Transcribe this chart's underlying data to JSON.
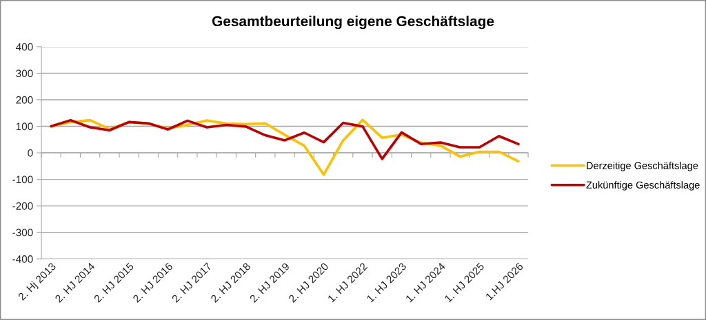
{
  "chart_data": {
    "type": "line",
    "title": "Gesamtbeurteilung eigene Geschäftslage",
    "categories": [
      "2. Hj 2013",
      null,
      "2. HJ 2014",
      null,
      "2. HJ 2015",
      null,
      "2. HJ 2016",
      null,
      "2. HJ 2017",
      null,
      "2. HJ 2018",
      null,
      "2. HJ 2019",
      null,
      "2. HJ 2020",
      null,
      "1. HJ 2022",
      null,
      "1. HJ 2023",
      null,
      "1. HJ 2024",
      null,
      "1. HJ 2025",
      null,
      "1.HJ 2026"
    ],
    "series": [
      {
        "name": "Derzeitige Geschäftslage",
        "color": "#ffc000",
        "values": [
          100,
          116,
          123,
          90,
          116,
          110,
          92,
          105,
          122,
          110,
          108,
          111,
          68,
          27,
          -82,
          47,
          124,
          57,
          68,
          38,
          27,
          -14,
          4,
          4,
          -32
        ]
      },
      {
        "name": "Zukünftige Geschäftslage",
        "color": "#c00000",
        "values": [
          100,
          123,
          96,
          85,
          116,
          111,
          88,
          121,
          96,
          105,
          99,
          66,
          47,
          76,
          40,
          113,
          99,
          -23,
          77,
          33,
          39,
          21,
          21,
          63,
          33
        ]
      }
    ],
    "ylim": [
      -400,
      400
    ],
    "yticks": [
      -400,
      -300,
      -200,
      -100,
      0,
      100,
      200,
      300,
      400
    ],
    "grid": "y",
    "legend": "right",
    "line_style": "solid"
  }
}
